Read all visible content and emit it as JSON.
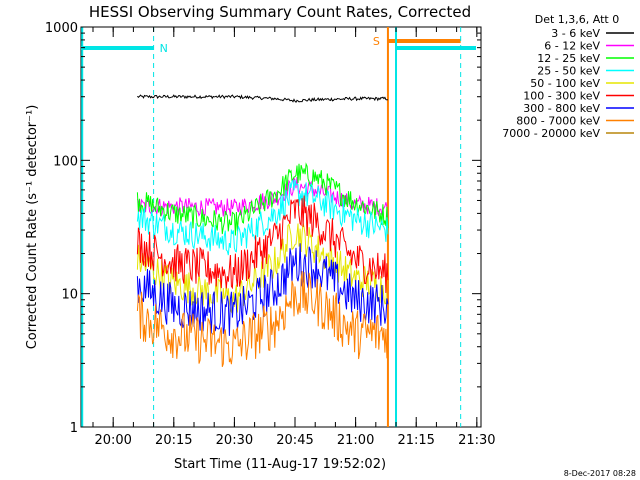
{
  "chart_data": {
    "type": "line",
    "title": "HESSI Observing Summary Count Rates, Corrected",
    "xlabel": "Start Time (11-Aug-17 19:52:02)",
    "ylabel": "Corrected Count Rate (s⁻¹ detector⁻¹)",
    "yscale": "log",
    "ylim": [
      1,
      1000
    ],
    "xlim_minutes_from_start": [
      0,
      99
    ],
    "x_ticks": [
      "20:00",
      "20:15",
      "20:30",
      "20:45",
      "21:00",
      "21:15",
      "21:30"
    ],
    "y_ticks": [
      "1",
      "10",
      "100",
      "1000"
    ],
    "legend_title": "Det 1,3,6, Att 0",
    "legend_position": "right",
    "footer_date": "8-Dec-2017 08:28",
    "flags": [
      {
        "label": "N",
        "color": "#00e5e5",
        "note": "night (cyan bars)"
      },
      {
        "label": "S",
        "color": "#ff8000",
        "note": "SAA (orange bar)"
      }
    ],
    "series": [
      {
        "name": "3 - 6 keV",
        "color": "#000000",
        "times": [
          "20:06",
          "20:15",
          "20:30",
          "20:40",
          "20:45",
          "20:50",
          "21:00",
          "21:08"
        ],
        "values": [
          300,
          300,
          300,
          290,
          280,
          285,
          290,
          290
        ]
      },
      {
        "name": "6 - 12 keV",
        "color": "#ff00ff",
        "times": [
          "20:06",
          "20:15",
          "20:30",
          "20:40",
          "20:45",
          "20:50",
          "21:00",
          "21:08"
        ],
        "values": [
          45,
          45,
          44,
          52,
          65,
          60,
          47,
          44
        ]
      },
      {
        "name": "12 - 25 keV",
        "color": "#00ff00",
        "times": [
          "20:06",
          "20:15",
          "20:30",
          "20:40",
          "20:45",
          "20:50",
          "21:00",
          "21:08"
        ],
        "values": [
          50,
          40,
          33,
          55,
          80,
          75,
          48,
          38
        ]
      },
      {
        "name": "25 - 50 keV",
        "color": "#00ffff",
        "times": [
          "20:06",
          "20:15",
          "20:30",
          "20:40",
          "20:45",
          "20:50",
          "21:00",
          "21:08"
        ],
        "values": [
          38,
          30,
          24,
          40,
          58,
          52,
          36,
          30
        ]
      },
      {
        "name": "50 - 100 keV",
        "color": "#e5e500",
        "times": [
          "20:06",
          "20:15",
          "20:30",
          "20:40",
          "20:45",
          "20:50",
          "21:00",
          "21:08"
        ],
        "values": [
          18,
          12,
          9,
          17,
          30,
          22,
          13,
          11
        ]
      },
      {
        "name": "100 - 300 keV",
        "color": "#ff0000",
        "times": [
          "20:06",
          "20:15",
          "20:30",
          "20:40",
          "20:45",
          "20:50",
          "21:00",
          "21:08"
        ],
        "values": [
          24,
          17,
          14,
          26,
          42,
          35,
          18,
          14
        ]
      },
      {
        "name": "300 - 800 keV",
        "color": "#0000ff",
        "times": [
          "20:06",
          "20:15",
          "20:30",
          "20:40",
          "20:45",
          "20:50",
          "21:00",
          "21:08"
        ],
        "values": [
          12,
          8,
          7,
          11,
          17,
          16,
          9,
          8
        ]
      },
      {
        "name": "800 - 7000 keV",
        "color": "#ff8000",
        "times": [
          "20:06",
          "20:15",
          "20:30",
          "20:40",
          "20:45",
          "20:50",
          "21:00",
          "21:08"
        ],
        "values": [
          7,
          5,
          4,
          6,
          10,
          9,
          5,
          5
        ]
      },
      {
        "name": "7000 - 20000 keV",
        "color": "#b8860b",
        "times": [],
        "values": []
      }
    ]
  }
}
